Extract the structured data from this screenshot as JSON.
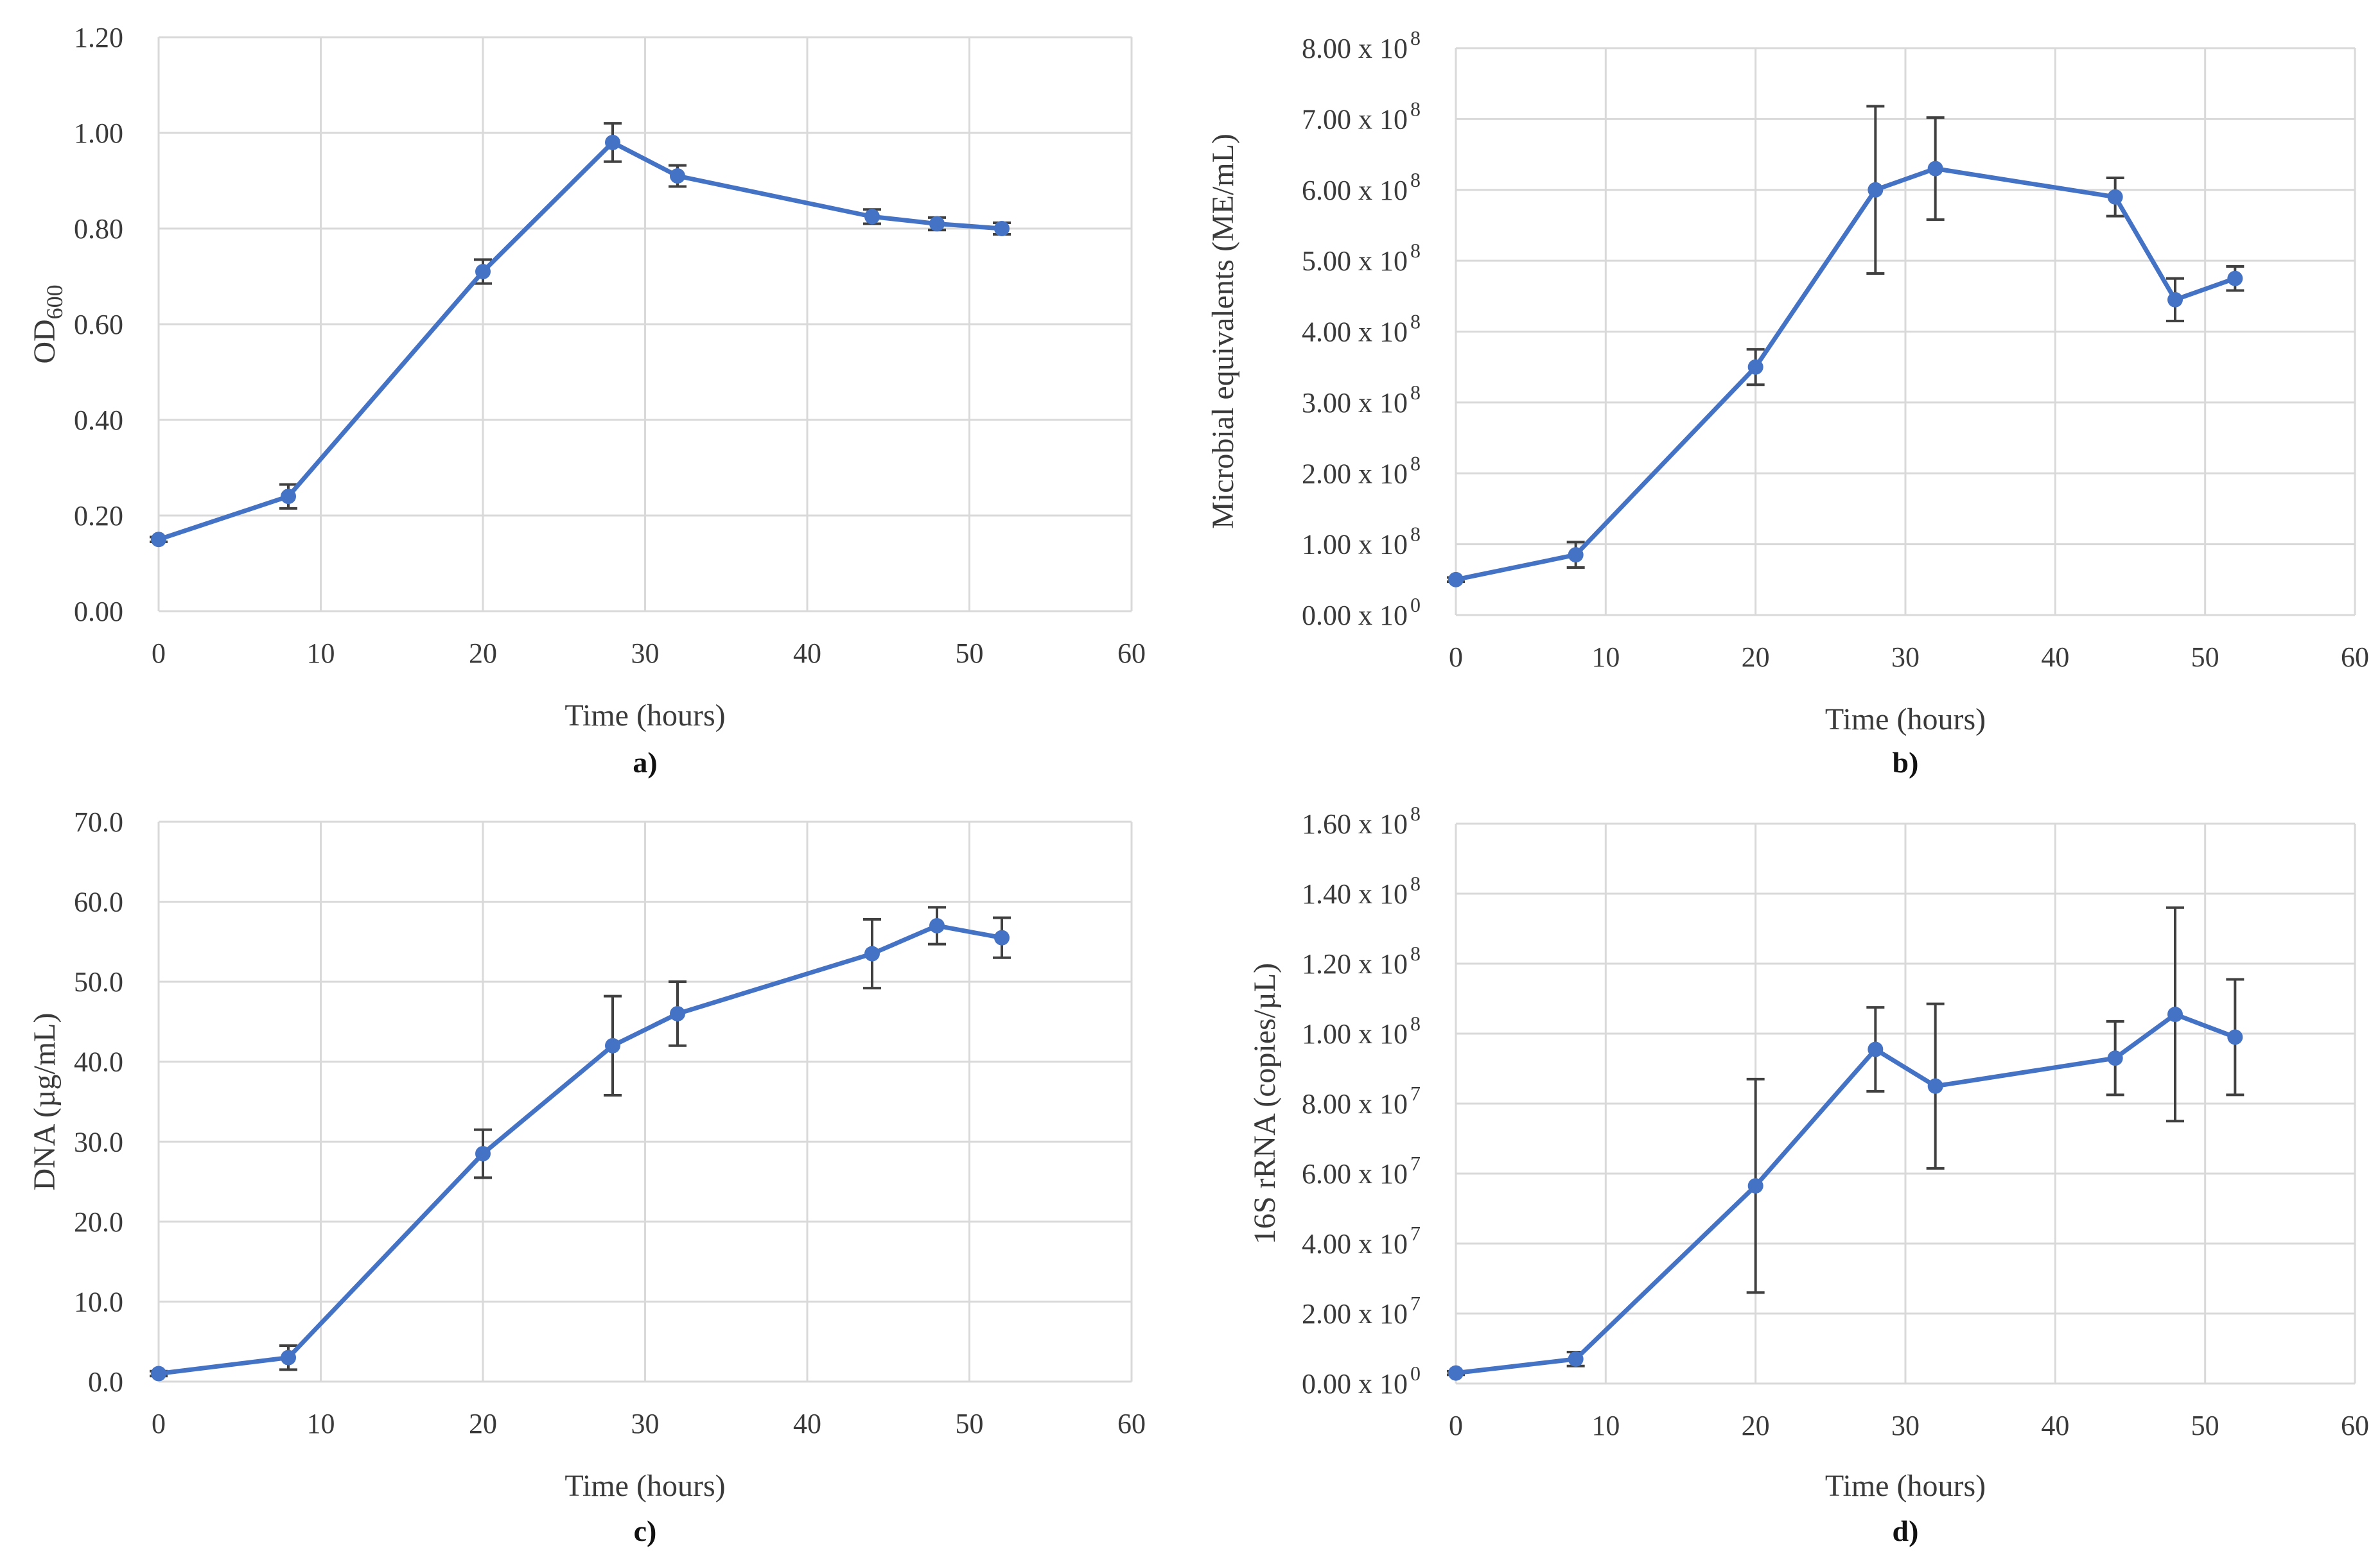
{
  "colors": {
    "series": "#4472C4",
    "grid": "#D9D9D9",
    "error_bar": "#404040"
  },
  "chart_data": [
    {
      "type": "line",
      "panel": "a)",
      "xlabel": "Time (hours)",
      "ylabel": "OD",
      "ylabel_sub": "600",
      "xlim": [
        0,
        60
      ],
      "xticks": [
        0,
        10,
        20,
        30,
        40,
        50,
        60
      ],
      "xtick_labels": [
        "0",
        "10",
        "20",
        "30",
        "40",
        "50",
        "60"
      ],
      "ylim": [
        0,
        1.2
      ],
      "yticks": [
        0,
        0.2,
        0.4,
        0.6,
        0.8,
        1.0,
        1.2
      ],
      "ytick_labels": [
        "0.00",
        "0.20",
        "0.40",
        "0.60",
        "0.80",
        "1.00",
        "1.20"
      ],
      "grid": true,
      "series": [
        {
          "name": "OD600",
          "x": [
            0,
            8,
            20,
            28,
            32,
            44,
            48,
            52
          ],
          "y": [
            0.15,
            0.24,
            0.71,
            0.98,
            0.91,
            0.825,
            0.81,
            0.8
          ],
          "err": [
            0.005,
            0.025,
            0.025,
            0.04,
            0.022,
            0.015,
            0.013,
            0.012
          ]
        }
      ]
    },
    {
      "type": "line",
      "panel": "b)",
      "xlabel": "Time (hours)",
      "ylabel": "Microbial equivalents (ME/mL)",
      "xlim": [
        0,
        60
      ],
      "xticks": [
        0,
        10,
        20,
        30,
        40,
        50,
        60
      ],
      "xtick_labels": [
        "0",
        "10",
        "20",
        "30",
        "40",
        "50",
        "60"
      ],
      "ylim": [
        0,
        800000000
      ],
      "yticks": [
        0,
        100000000,
        200000000,
        300000000,
        400000000,
        500000000,
        600000000,
        700000000,
        800000000
      ],
      "ytick_labels": [
        {
          "base": "0.00 x 10",
          "exp": "0"
        },
        {
          "base": "1.00 x 10",
          "exp": "8"
        },
        {
          "base": "2.00 x 10",
          "exp": "8"
        },
        {
          "base": "3.00 x 10",
          "exp": "8"
        },
        {
          "base": "4.00 x 10",
          "exp": "8"
        },
        {
          "base": "5.00 x 10",
          "exp": "8"
        },
        {
          "base": "6.00 x 10",
          "exp": "8"
        },
        {
          "base": "7.00 x 10",
          "exp": "8"
        },
        {
          "base": "8.00 x 10",
          "exp": "8"
        }
      ],
      "grid": true,
      "series": [
        {
          "name": "Microbial equivalents",
          "x": [
            0,
            8,
            20,
            28,
            32,
            44,
            48,
            52
          ],
          "y": [
            50000000,
            85000000,
            350000000,
            600000000,
            630000000,
            590000000,
            445000000,
            475000000
          ],
          "err": [
            3000000,
            18000000,
            25000000,
            118000000,
            72000000,
            27000000,
            30000000,
            17000000
          ]
        }
      ]
    },
    {
      "type": "line",
      "panel": "c)",
      "xlabel": "Time (hours)",
      "ylabel": "DNA (µg/mL)",
      "xlim": [
        0,
        60
      ],
      "xticks": [
        0,
        10,
        20,
        30,
        40,
        50,
        60
      ],
      "xtick_labels": [
        "0",
        "10",
        "20",
        "30",
        "40",
        "50",
        "60"
      ],
      "ylim": [
        0,
        70
      ],
      "yticks": [
        0,
        10,
        20,
        30,
        40,
        50,
        60,
        70
      ],
      "ytick_labels": [
        "0.0",
        "10.0",
        "20.0",
        "30.0",
        "40.0",
        "50.0",
        "60.0",
        "70.0"
      ],
      "grid": true,
      "series": [
        {
          "name": "DNA",
          "x": [
            0,
            8,
            20,
            28,
            32,
            44,
            48,
            52
          ],
          "y": [
            1.0,
            3.0,
            28.5,
            42.0,
            46.0,
            53.5,
            57.0,
            55.5
          ],
          "err": [
            0.3,
            1.5,
            3.0,
            6.2,
            4.0,
            4.3,
            2.3,
            2.5
          ]
        }
      ]
    },
    {
      "type": "line",
      "panel": "d)",
      "xlabel": "Time (hours)",
      "ylabel": "16S rRNA (copies/µL)",
      "xlim": [
        0,
        60
      ],
      "xticks": [
        0,
        10,
        20,
        30,
        40,
        50,
        60
      ],
      "xtick_labels": [
        "0",
        "10",
        "20",
        "30",
        "40",
        "50",
        "60"
      ],
      "ylim": [
        0,
        160000000
      ],
      "yticks": [
        0,
        20000000,
        40000000,
        60000000,
        80000000,
        100000000,
        120000000,
        140000000,
        160000000
      ],
      "ytick_labels": [
        {
          "base": "0.00 x 10",
          "exp": "0"
        },
        {
          "base": "2.00 x 10",
          "exp": "7"
        },
        {
          "base": "4.00 x 10",
          "exp": "7"
        },
        {
          "base": "6.00 x 10",
          "exp": "7"
        },
        {
          "base": "8.00 x 10",
          "exp": "7"
        },
        {
          "base": "1.00 x 10",
          "exp": "8"
        },
        {
          "base": "1.20 x 10",
          "exp": "8"
        },
        {
          "base": "1.40 x 10",
          "exp": "8"
        },
        {
          "base": "1.60 x 10",
          "exp": "8"
        }
      ],
      "grid": true,
      "series": [
        {
          "name": "16S rRNA",
          "x": [
            0,
            8,
            20,
            28,
            32,
            44,
            48,
            52
          ],
          "y": [
            3000000,
            7000000,
            56500000,
            95500000,
            85000000,
            93000000,
            105500000,
            99000000
          ],
          "err": [
            500000,
            2000000,
            30500000,
            12000000,
            23500000,
            10500000,
            30500000,
            16500000
          ]
        }
      ]
    }
  ]
}
